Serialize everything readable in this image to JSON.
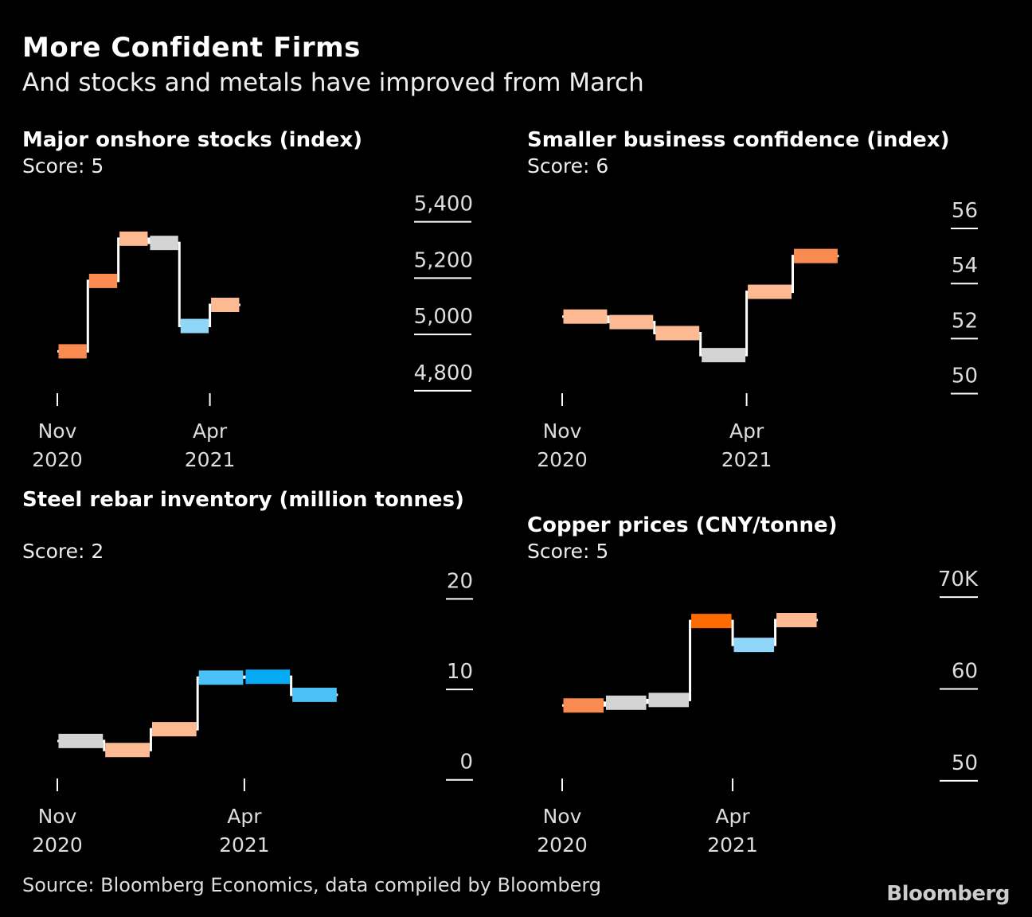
{
  "header": {
    "title": "More Confident Firms",
    "subtitle": "And stocks and metals have improved from March"
  },
  "footer": {
    "source": "Source: Bloomberg Economics, data compiled by Bloomberg",
    "brand": "Bloomberg"
  },
  "colors": {
    "background": "#000000",
    "line": "#ffffff",
    "axis": "#ffffff"
  },
  "chart_data": [
    {
      "id": "stocks",
      "type": "step",
      "title": "Major onshore stocks (index)",
      "score": "Score: 5",
      "x_ticks": [
        {
          "month": 0,
          "line1": "Nov",
          "line2": "2020"
        },
        {
          "month": 5,
          "line1": "Apr",
          "line2": "2021"
        }
      ],
      "y_ticks": [
        {
          "value": 4800,
          "label": "4,800"
        },
        {
          "value": 5000,
          "label": "5,000"
        },
        {
          "value": 5200,
          "label": "5,200"
        },
        {
          "value": 5400,
          "label": "5,400"
        }
      ],
      "ylim": [
        4780,
        5430
      ],
      "x_months": 9.5,
      "values": [
        4940,
        5190,
        5340,
        5325,
        5030,
        5105
      ],
      "bar_colors": [
        "#f98a50",
        "#f98a50",
        "#fdba92",
        "#d4d4d4",
        "#8fd6f9",
        "#fdba92"
      ]
    },
    {
      "id": "confidence",
      "type": "step",
      "title": "Smaller business confidence (index)",
      "score": "Score: 6",
      "x_ticks": [
        {
          "month": 0,
          "line1": "Nov",
          "line2": "2020"
        },
        {
          "month": 4,
          "line1": "Apr",
          "line2": "2021"
        }
      ],
      "y_ticks": [
        {
          "value": 50,
          "label": "50"
        },
        {
          "value": 52,
          "label": "52"
        },
        {
          "value": 54,
          "label": "54"
        },
        {
          "value": 56,
          "label": "56"
        }
      ],
      "ylim": [
        49.9,
        56.55
      ],
      "x_months": 7.15,
      "values": [
        52.8,
        52.6,
        52.2,
        51.4,
        53.7,
        55.0
      ],
      "bar_colors": [
        "#fdba92",
        "#fdba92",
        "#fdba92",
        "#d4d4d4",
        "#fdba92",
        "#f98a50"
      ]
    },
    {
      "id": "rebar",
      "type": "step",
      "title": "Steel rebar inventory (million tonnes)",
      "score": "Score: 2",
      "x_ticks": [
        {
          "month": 0,
          "line1": "Nov",
          "line2": "2020"
        },
        {
          "month": 4,
          "line1": "Apr",
          "line2": "2021"
        }
      ],
      "y_ticks": [
        {
          "value": 0,
          "label": "0"
        },
        {
          "value": 10,
          "label": "10"
        },
        {
          "value": 20,
          "label": "20"
        }
      ],
      "ylim": [
        -0.2,
        20.3
      ],
      "x_months": 7.05,
      "values": [
        4.3,
        3.3,
        5.6,
        11.3,
        11.4,
        9.4
      ],
      "bar_colors": [
        "#d4d4d4",
        "#fdba92",
        "#fdba92",
        "#4ac1f7",
        "#05a9f4",
        "#4ac1f7"
      ]
    },
    {
      "id": "copper",
      "type": "step",
      "title": "Copper prices (CNY/tonne)",
      "score": "Score: 5",
      "x_ticks": [
        {
          "month": 0,
          "line1": "Nov",
          "line2": "2020"
        },
        {
          "month": 4,
          "line1": "Apr",
          "line2": "2021"
        }
      ],
      "y_ticks": [
        {
          "value": 50,
          "label": "50"
        },
        {
          "value": 60,
          "label": "60"
        },
        {
          "value": 70,
          "label": "70K"
        }
      ],
      "ylim": [
        49.9,
        70.1
      ],
      "x_months": 7.4,
      "values": [
        58.2,
        58.5,
        58.8,
        67.4,
        64.8,
        67.5
      ],
      "bar_colors": [
        "#f98a50",
        "#d4d4d4",
        "#d4d4d4",
        "#fe6b00",
        "#8fd6f9",
        "#fdba92"
      ]
    }
  ]
}
